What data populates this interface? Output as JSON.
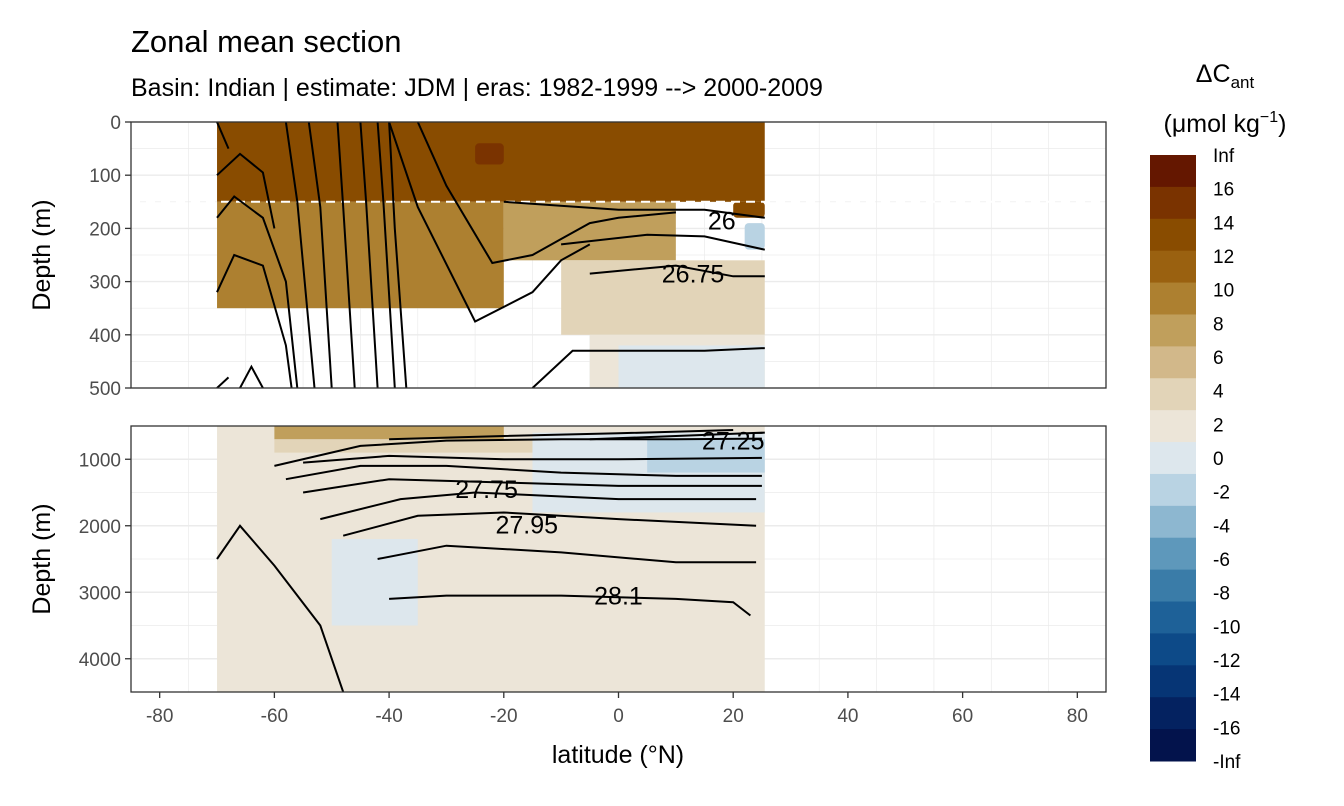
{
  "title": "Zonal mean section",
  "subtitle": "Basin: Indian | estimate: JDM  | eras: 1982-1999 --> 2000-2009",
  "legend": {
    "title_symbol": "ΔC",
    "title_sub": "ant",
    "units_open": "(μmol kg",
    "units_sup": "−1",
    "units_close": ")",
    "labels": [
      "Inf",
      "16",
      "14",
      "12",
      "10",
      "8",
      "6",
      "4",
      "2",
      "0",
      "-2",
      "-4",
      "-6",
      "-8",
      "-10",
      "-12",
      "-14",
      "-16",
      "-Inf"
    ],
    "colors": [
      "#641700",
      "#7a3300",
      "#894c00",
      "#9a6110",
      "#ad8030",
      "#c09f5c",
      "#d2b88a",
      "#e2d4b8",
      "#ece5d8",
      "#dde7ed",
      "#b9d3e3",
      "#8db7d0",
      "#5e98bb",
      "#3a7ca8",
      "#1e6198",
      "#0d4a88",
      "#063575",
      "#042260",
      "#03134c"
    ]
  },
  "chart_data": {
    "type": "heatmap",
    "xlabel": "latitude (°N)",
    "ylabel": "Depth (m)",
    "xlim": [
      -85,
      85
    ],
    "xticks": [
      -80,
      -60,
      -40,
      -20,
      0,
      20,
      40,
      60,
      80
    ],
    "data_lat_range": [
      -70,
      25.5
    ],
    "panels": [
      {
        "ylim": [
          0,
          500
        ],
        "yticks": [
          0,
          100,
          200,
          300,
          400,
          500
        ],
        "ref_depth": 150,
        "contour_labels": [
          {
            "text": "26",
            "lat": 18,
            "depth": 185
          },
          {
            "text": "26.75",
            "lat": 13,
            "depth": 285
          }
        ],
        "regions": [
          {
            "value": 12,
            "lat": [
              -70,
              25.5
            ],
            "depth": [
              0,
              150
            ]
          },
          {
            "value": 14,
            "lat": [
              -25,
              -20
            ],
            "depth": [
              40,
              80
            ]
          },
          {
            "value": 13,
            "lat": [
              20,
              25.5
            ],
            "depth": [
              150,
              180
            ]
          },
          {
            "value": 8,
            "lat": [
              -70,
              -20
            ],
            "depth": [
              150,
              350
            ]
          },
          {
            "value": 6,
            "lat": [
              -20,
              10
            ],
            "depth": [
              150,
              260
            ]
          },
          {
            "value": 3,
            "lat": [
              -10,
              25.5
            ],
            "depth": [
              260,
              400
            ]
          },
          {
            "value": 1,
            "lat": [
              -5,
              25.5
            ],
            "depth": [
              400,
              500
            ]
          },
          {
            "value": -1,
            "lat": [
              0,
              25.5
            ],
            "depth": [
              420,
              500
            ]
          },
          {
            "value": -3,
            "lat": [
              22,
              25.5
            ],
            "depth": [
              190,
              240
            ]
          }
        ],
        "contours": [
          {
            "label": "26",
            "points": [
              [
                -20,
                150
              ],
              [
                0,
                165
              ],
              [
                15,
                165
              ],
              [
                25.5,
                180
              ]
            ]
          },
          {
            "label": "",
            "points": [
              [
                -10,
                230
              ],
              [
                5,
                212
              ],
              [
                15,
                215
              ],
              [
                25.5,
                240
              ]
            ]
          },
          {
            "label": "26.75",
            "points": [
              [
                -5,
                285
              ],
              [
                10,
                270
              ],
              [
                20,
                290
              ],
              [
                25.5,
                290
              ]
            ]
          },
          {
            "label": "",
            "points": [
              [
                -15,
                500
              ],
              [
                -8,
                430
              ],
              [
                0,
                430
              ],
              [
                15,
                430
              ],
              [
                25.5,
                425
              ]
            ]
          },
          {
            "label": "",
            "points": [
              [
                -35,
                0
              ],
              [
                -30,
                120
              ],
              [
                -22,
                265
              ],
              [
                -15,
                250
              ],
              [
                -10,
                220
              ],
              [
                -5,
                190
              ],
              [
                0,
                180
              ],
              [
                10,
                170
              ]
            ]
          },
          {
            "label": "",
            "points": [
              [
                -40,
                0
              ],
              [
                -35,
                160
              ],
              [
                -25,
                375
              ],
              [
                -15,
                320
              ],
              [
                -10,
                260
              ],
              [
                -5,
                230
              ]
            ]
          },
          {
            "label": "",
            "points": [
              [
                -70,
                0
              ],
              [
                -68,
                50
              ]
            ]
          },
          {
            "label": "",
            "points": [
              [
                -70,
                100
              ],
              [
                -66,
                60
              ],
              [
                -62,
                95
              ],
              [
                -60,
                200
              ]
            ]
          },
          {
            "label": "",
            "points": [
              [
                -70,
                180
              ],
              [
                -67,
                140
              ],
              [
                -62,
                180
              ],
              [
                -58,
                300
              ],
              [
                -56,
                500
              ]
            ]
          },
          {
            "label": "",
            "points": [
              [
                -70,
                320
              ],
              [
                -67,
                250
              ],
              [
                -62,
                270
              ],
              [
                -58,
                420
              ],
              [
                -57,
                500
              ]
            ]
          },
          {
            "label": "",
            "points": [
              [
                -70,
                500
              ],
              [
                -68,
                480
              ]
            ]
          },
          {
            "label": "",
            "points": [
              [
                -66,
                500
              ],
              [
                -64,
                460
              ],
              [
                -62,
                500
              ]
            ]
          },
          {
            "label": "",
            "points": [
              [
                -58,
                0
              ],
              [
                -56,
                150
              ],
              [
                -53,
                500
              ]
            ]
          },
          {
            "label": "",
            "points": [
              [
                -54,
                0
              ],
              [
                -52,
                160
              ],
              [
                -50,
                500
              ]
            ]
          },
          {
            "label": "",
            "points": [
              [
                -49,
                0
              ],
              [
                -48,
                160
              ],
              [
                -46,
                500
              ]
            ]
          },
          {
            "label": "",
            "points": [
              [
                -45,
                0
              ],
              [
                -44,
                150
              ],
              [
                -42,
                500
              ]
            ]
          },
          {
            "label": "",
            "points": [
              [
                -42,
                0
              ],
              [
                -41,
                150
              ],
              [
                -39,
                500
              ]
            ]
          },
          {
            "label": "",
            "points": [
              [
                -40,
                0
              ],
              [
                -39,
                200
              ],
              [
                -37,
                500
              ]
            ]
          }
        ]
      },
      {
        "ylim": [
          500,
          4500
        ],
        "yticks": [
          1000,
          2000,
          3000,
          4000
        ],
        "contour_labels": [
          {
            "text": "27.25",
            "lat": 20,
            "depth": 720
          },
          {
            "text": "27.75",
            "lat": -23,
            "depth": 1450
          },
          {
            "text": "27.95",
            "lat": -16,
            "depth": 1980
          },
          {
            "text": "28.1",
            "lat": 0,
            "depth": 3050
          }
        ],
        "regions": [
          {
            "value": 1,
            "lat": [
              -70,
              25.5
            ],
            "depth": [
              500,
              4500
            ]
          },
          {
            "value": 6,
            "lat": [
              -60,
              -20
            ],
            "depth": [
              500,
              700
            ]
          },
          {
            "value": 3,
            "lat": [
              -60,
              -10
            ],
            "depth": [
              700,
              900
            ]
          },
          {
            "value": -1,
            "lat": [
              -15,
              25.5
            ],
            "depth": [
              600,
              1800
            ]
          },
          {
            "value": -3,
            "lat": [
              5,
              25.5
            ],
            "depth": [
              700,
              1200
            ]
          },
          {
            "value": -1,
            "lat": [
              -50,
              -35
            ],
            "depth": [
              2200,
              3500
            ]
          }
        ],
        "contours": [
          {
            "label": "27.25",
            "points": [
              [
                -5,
                700
              ],
              [
                10,
                650
              ],
              [
                25.5,
                600
              ]
            ]
          },
          {
            "label": "",
            "points": [
              [
                -40,
                700
              ],
              [
                -20,
                650
              ],
              [
                0,
                610
              ],
              [
                20,
                560
              ]
            ]
          },
          {
            "label": "",
            "points": [
              [
                -60,
                1100
              ],
              [
                -45,
                800
              ],
              [
                -30,
                720
              ],
              [
                -10,
                700
              ],
              [
                10,
                700
              ],
              [
                25,
                690
              ]
            ]
          },
          {
            "label": "",
            "points": [
              [
                -55,
                1050
              ],
              [
                -40,
                950
              ],
              [
                -20,
                1000
              ],
              [
                0,
                1000
              ],
              [
                25,
                980
              ]
            ]
          },
          {
            "label": "27.75",
            "points": [
              [
                -58,
                1300
              ],
              [
                -45,
                1100
              ],
              [
                -30,
                1100
              ],
              [
                -10,
                1200
              ],
              [
                10,
                1250
              ],
              [
                25,
                1250
              ]
            ]
          },
          {
            "label": "",
            "points": [
              [
                -55,
                1500
              ],
              [
                -40,
                1300
              ],
              [
                -20,
                1350
              ],
              [
                0,
                1400
              ],
              [
                25,
                1400
              ]
            ]
          },
          {
            "label": "27.95",
            "points": [
              [
                -52,
                1900
              ],
              [
                -38,
                1600
              ],
              [
                -25,
                1500
              ],
              [
                0,
                1600
              ],
              [
                24,
                1600
              ]
            ]
          },
          {
            "label": "",
            "points": [
              [
                -48,
                2150
              ],
              [
                -35,
                1850
              ],
              [
                -20,
                1800
              ],
              [
                0,
                1900
              ],
              [
                24,
                2000
              ]
            ]
          },
          {
            "label": "",
            "points": [
              [
                -42,
                2500
              ],
              [
                -30,
                2300
              ],
              [
                -10,
                2400
              ],
              [
                10,
                2550
              ],
              [
                24,
                2550
              ]
            ]
          },
          {
            "label": "28.1",
            "points": [
              [
                -40,
                3100
              ],
              [
                -30,
                3050
              ],
              [
                -10,
                3050
              ],
              [
                10,
                3100
              ],
              [
                20,
                3150
              ],
              [
                23,
                3350
              ]
            ]
          },
          {
            "label": "",
            "points": [
              [
                -70,
                2500
              ],
              [
                -66,
                2000
              ],
              [
                -60,
                2600
              ],
              [
                -52,
                3500
              ],
              [
                -48,
                4500
              ]
            ]
          }
        ]
      }
    ]
  }
}
